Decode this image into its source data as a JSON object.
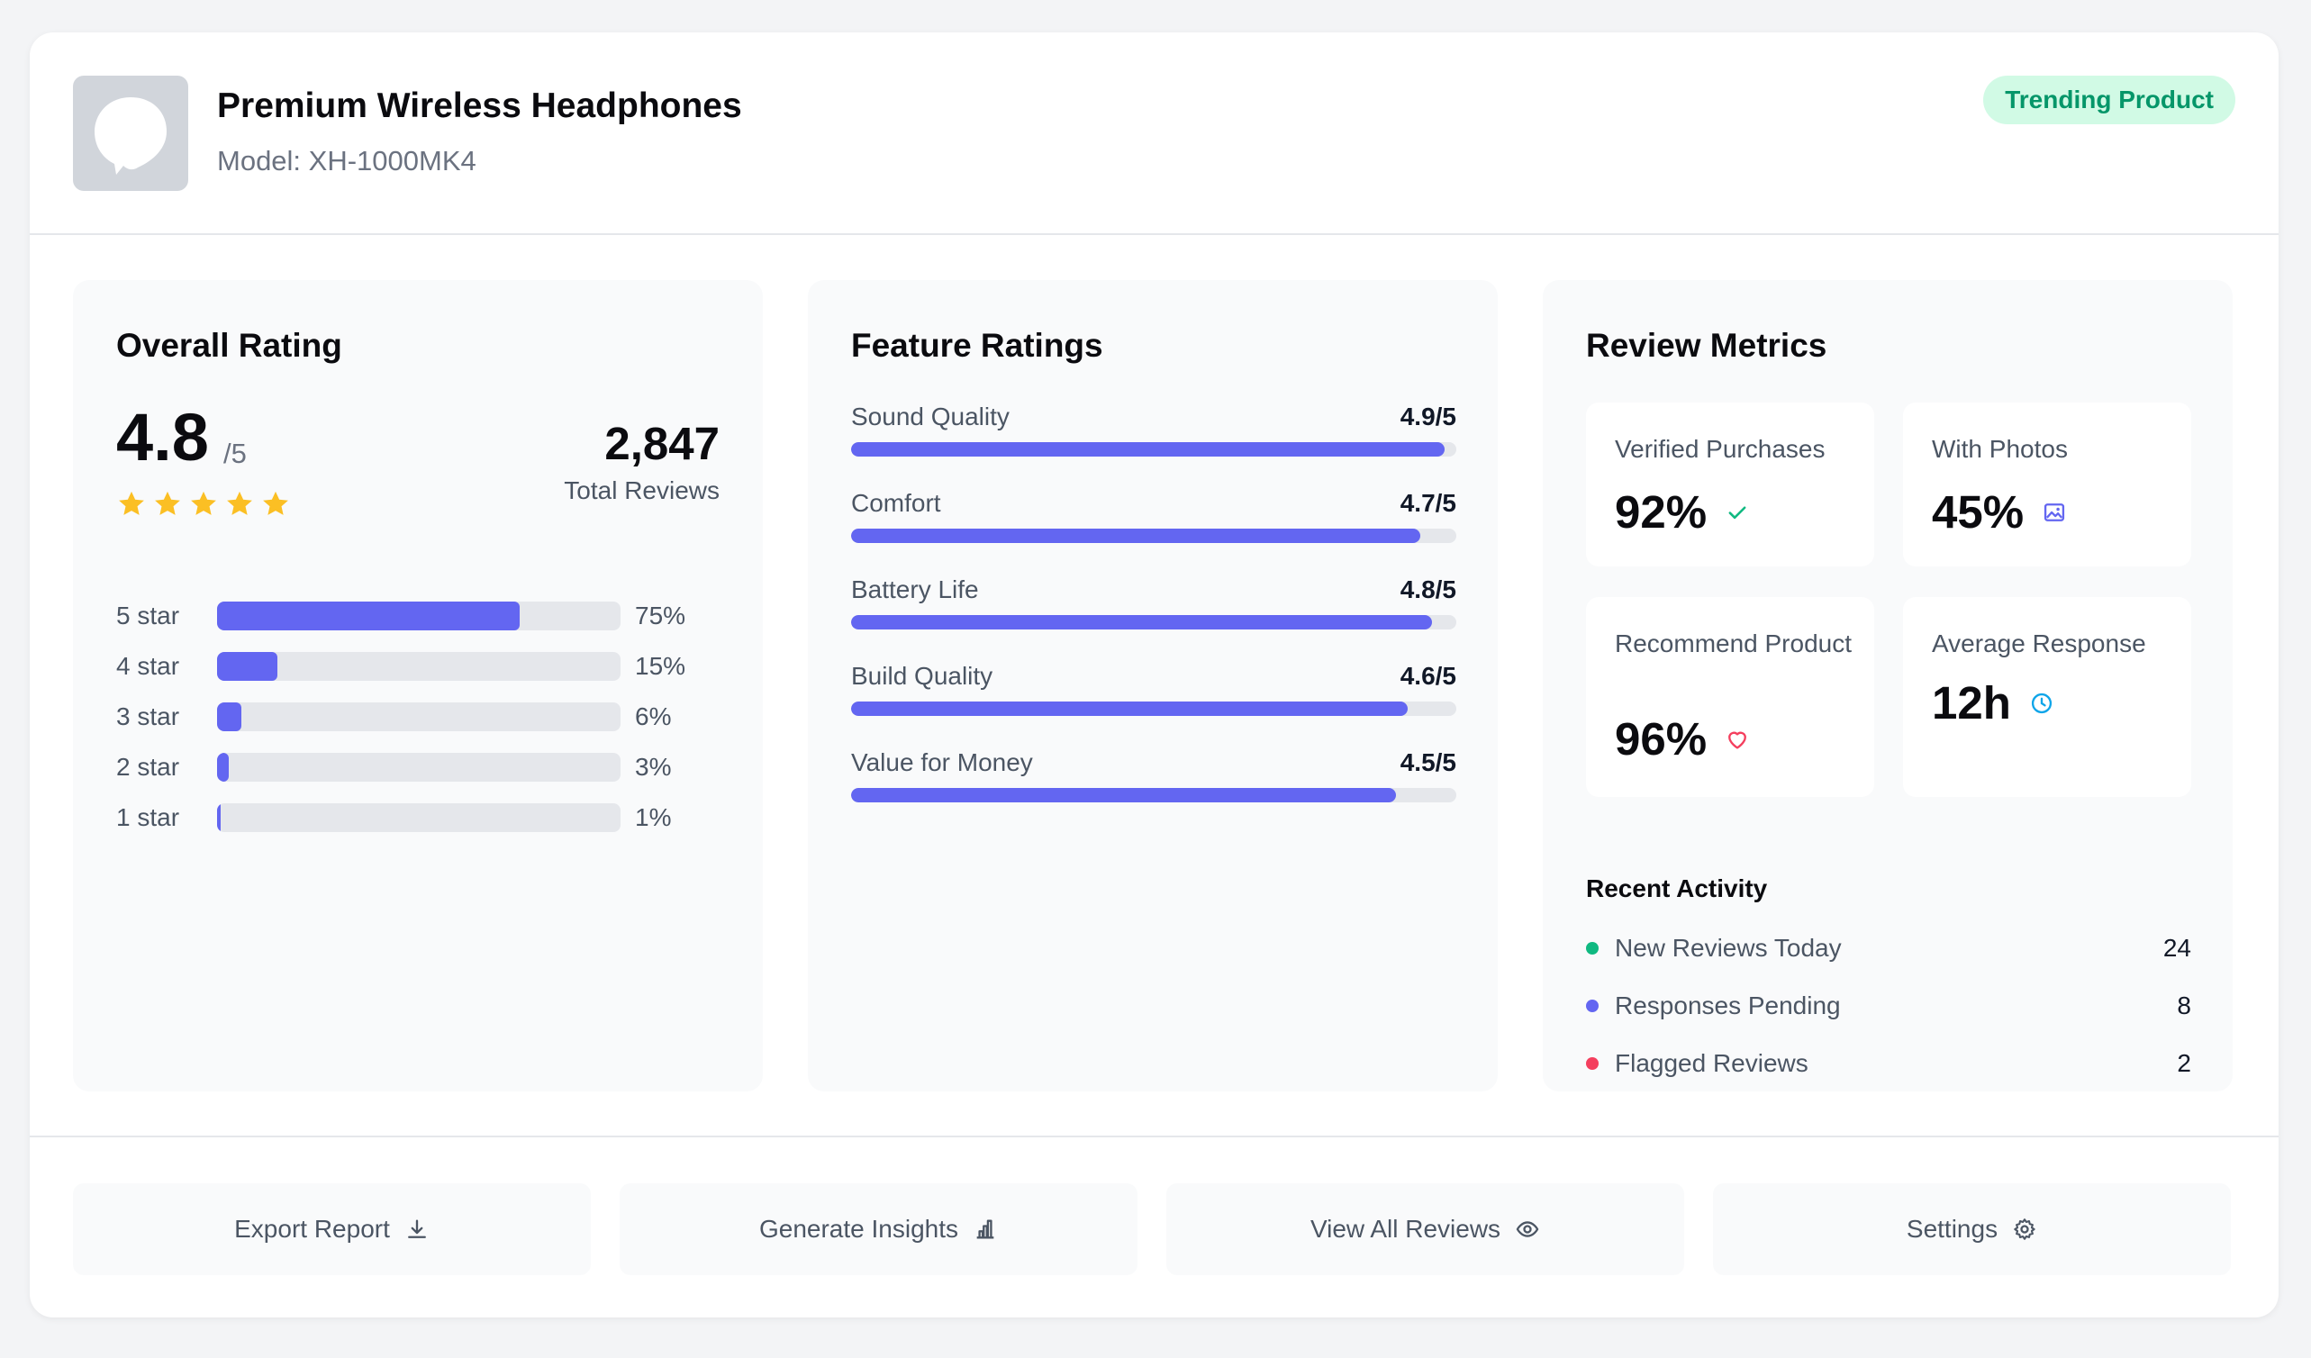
{
  "product": {
    "title": "Premium Wireless Headphones",
    "model": "Model: XH-1000MK4",
    "badge": "Trending Product",
    "thumbnail_icon": "headphones-image-icon"
  },
  "overall": {
    "title": "Overall Rating",
    "rating": "4.8",
    "out_of": "/5",
    "stars": 5,
    "total_reviews": "2,847",
    "total_label": "Total Reviews",
    "distribution": [
      {
        "label": "5 star",
        "percent": 75,
        "display": "75%"
      },
      {
        "label": "4 star",
        "percent": 15,
        "display": "15%"
      },
      {
        "label": "3 star",
        "percent": 6,
        "display": "6%"
      },
      {
        "label": "2 star",
        "percent": 3,
        "display": "3%"
      },
      {
        "label": "1 star",
        "percent": 1,
        "display": "1%"
      }
    ]
  },
  "features": {
    "title": "Feature Ratings",
    "items": [
      {
        "label": "Sound Quality",
        "score": 4.9,
        "display": "4.9/5"
      },
      {
        "label": "Comfort",
        "score": 4.7,
        "display": "4.7/5"
      },
      {
        "label": "Battery Life",
        "score": 4.8,
        "display": "4.8/5"
      },
      {
        "label": "Build Quality",
        "score": 4.6,
        "display": "4.6/5"
      },
      {
        "label": "Value for Money",
        "score": 4.5,
        "display": "4.5/5"
      }
    ]
  },
  "metrics": {
    "title": "Review Metrics",
    "cards": [
      {
        "label": "Verified Purchases",
        "value": "92%",
        "icon": "check-icon"
      },
      {
        "label": "With Photos",
        "value": "45%",
        "icon": "image-icon"
      },
      {
        "label": "Recommend Product",
        "value": "96%",
        "icon": "heart-icon"
      },
      {
        "label": "Average Response",
        "value": "12h",
        "icon": "clock-icon"
      }
    ],
    "recent_title": "Recent Activity",
    "recent": [
      {
        "label": "New Reviews Today",
        "value": "24",
        "color": "#10b981"
      },
      {
        "label": "Responses Pending",
        "value": "8",
        "color": "#6366f1"
      },
      {
        "label": "Flagged Reviews",
        "value": "2",
        "color": "#f43f5e"
      }
    ]
  },
  "actions": [
    {
      "label": "Export Report",
      "icon": "download-icon"
    },
    {
      "label": "Generate Insights",
      "icon": "bar-chart-icon"
    },
    {
      "label": "View All Reviews",
      "icon": "eye-icon"
    },
    {
      "label": "Settings",
      "icon": "gear-icon"
    }
  ],
  "colors": {
    "accent": "#6366f1",
    "star": "#fbbf24",
    "success": "#10b981",
    "danger": "#f43f5e",
    "info": "#0ea5e9"
  }
}
